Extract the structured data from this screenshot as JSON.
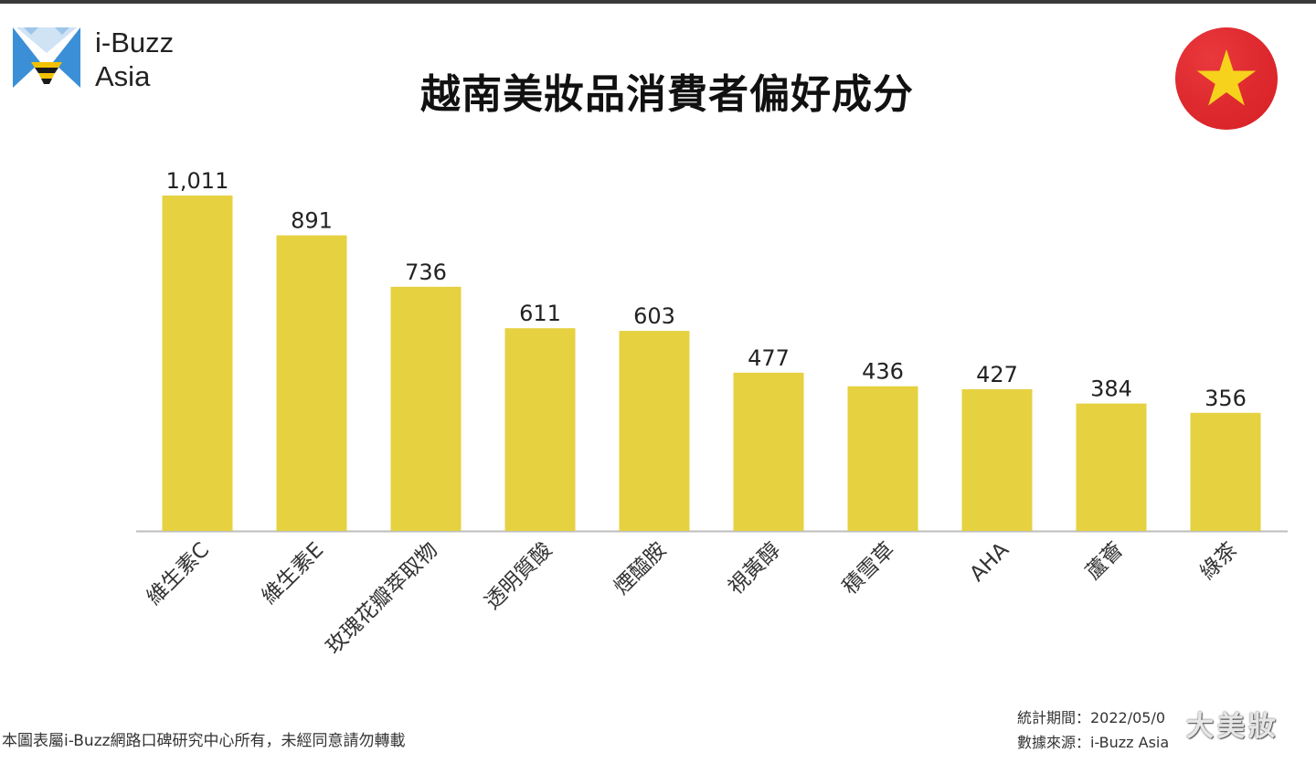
{
  "brand": {
    "line1": "i-Buzz",
    "line2": "Asia"
  },
  "page_title": "越南美妝品消費者偏好成分",
  "flag": {
    "name": "vietnam-flag-icon",
    "bg": "#e8262b",
    "star": "#f7d21c"
  },
  "colors": {
    "bar": "#e6d141",
    "axis": "#bdbdbd",
    "label": "#222222"
  },
  "chart_data": {
    "type": "bar",
    "title": "越南美妝品消費者偏好成分",
    "xlabel": "",
    "ylabel": "",
    "grid": false,
    "legend": "none",
    "categories": [
      "維生素C",
      "維生素E",
      "玫瑰花瓣萃取物",
      "透明質酸",
      "煙醯胺",
      "視黃醇",
      "積雪草",
      "AHA",
      "蘆薈",
      "綠茶"
    ],
    "values": [
      1011,
      891,
      736,
      611,
      603,
      477,
      436,
      427,
      384,
      356
    ],
    "value_labels": [
      "1,011",
      "891",
      "736",
      "611",
      "603",
      "477",
      "436",
      "427",
      "384",
      "356"
    ],
    "ylim": [
      0,
      1011
    ]
  },
  "footer": {
    "copyright": "本圖表屬i-Buzz網路口碑研究中心所有，未經同意請勿轉載",
    "period": "統計期間：2022/05/0",
    "source": "數據來源：i-Buzz Asia",
    "watermark": "大美妝"
  }
}
